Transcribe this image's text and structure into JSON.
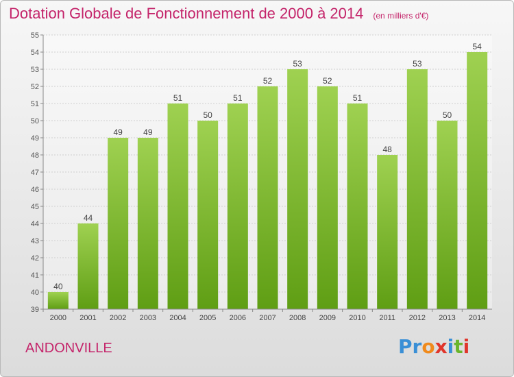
{
  "header": {
    "title": "Dotation Globale de Fonctionnement de 2000 à 2014",
    "subtitle": "(en milliers d'€)"
  },
  "footer": {
    "commune": "ANDONVILLE",
    "logo": [
      "P",
      "r",
      "o",
      "x",
      "i",
      "t",
      "i"
    ]
  },
  "colors": {
    "bar_top": "#9fd151",
    "bar_bottom": "#5f9e14",
    "title": "#c4246a",
    "logo": [
      "#3a8fd6",
      "#3a8fd6",
      "#f08a1c",
      "#e0352b",
      "#3a8fd6",
      "#6ab52b",
      "#e0352b"
    ]
  },
  "chart_data": {
    "type": "bar",
    "title": "Dotation Globale de Fonctionnement de 2000 à 2014",
    "subtitle": "(en milliers d'€)",
    "categories": [
      "2000",
      "2001",
      "2002",
      "2003",
      "2004",
      "2005",
      "2006",
      "2007",
      "2008",
      "2009",
      "2010",
      "2011",
      "2012",
      "2013",
      "2014"
    ],
    "values": [
      40,
      44,
      49,
      49,
      51,
      50,
      51,
      52,
      53,
      52,
      51,
      48,
      53,
      50,
      54
    ],
    "ylim": [
      39,
      55
    ],
    "yticks": [
      39,
      40,
      41,
      42,
      43,
      44,
      45,
      46,
      47,
      48,
      49,
      50,
      51,
      52,
      53,
      54,
      55
    ],
    "grid": true,
    "legend": "none"
  }
}
